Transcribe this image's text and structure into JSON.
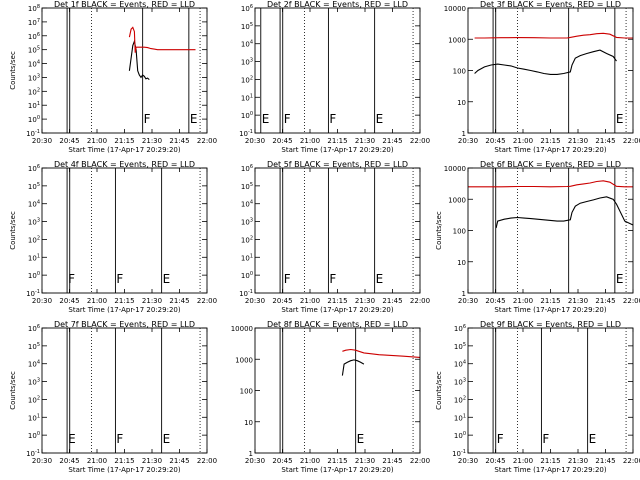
{
  "chart_data": [
    {
      "type": "line",
      "title": "Det 1f BLACK = Events, RED = LLD",
      "xlabel": "Start Time (17-Apr-17 20:29:20)",
      "ylabel": "Counts/sec",
      "xlim": [
        0,
        100
      ],
      "x_ticks": [
        "20:30",
        "20:45",
        "21:00",
        "21:15",
        "21:30",
        "21:45",
        "22:00"
      ],
      "y_scale": "log",
      "ylim": [
        0.1,
        100000000
      ],
      "y_ticks": [
        "10^-1",
        "10^0",
        "10^1",
        "10^2",
        "10^3",
        "10^4",
        "10^5",
        "10^6",
        "10^7",
        "10^8"
      ],
      "vlines": [
        {
          "x": 15.2,
          "style": "solid",
          "label": ""
        },
        {
          "x": 16.8,
          "style": "solid",
          "label": ""
        },
        {
          "x": 61.0,
          "style": "solid",
          "label": "F"
        },
        {
          "x": 89.0,
          "style": "solid",
          "label": "E"
        },
        {
          "x": 30.0,
          "style": "dotted",
          "label": ""
        },
        {
          "x": 95.8,
          "style": "dotted",
          "label": ""
        }
      ],
      "series": [
        {
          "name": "Events",
          "color": "#000000",
          "x": [
            53,
            55,
            56,
            57,
            58,
            59,
            60,
            61,
            62,
            63,
            64,
            65
          ],
          "y": [
            3000,
            200000,
            400000,
            100000,
            3000,
            1500,
            1000,
            1500,
            1200,
            800,
            900,
            700
          ]
        },
        {
          "name": "LLD",
          "color": "#cc0000",
          "x": [
            53,
            54,
            55,
            56,
            56.5,
            57,
            58,
            59,
            60,
            62,
            64,
            66,
            68,
            70,
            80,
            90,
            93
          ],
          "y": [
            800000,
            3000000,
            4000000,
            2000000,
            60000,
            150000,
            150000,
            150000,
            150000,
            150000,
            140000,
            120000,
            110000,
            100000,
            100000,
            100000,
            100000
          ]
        }
      ]
    },
    {
      "type": "line",
      "title": "Det 2f BLACK = Events, RED = LLD",
      "xlabel": "Start Time (17-Apr-17 20:29:20)",
      "ylabel": "",
      "xlim": [
        0,
        100
      ],
      "x_ticks": [
        "20:30",
        "20:45",
        "21:00",
        "21:15",
        "21:30",
        "21:45",
        "22:00"
      ],
      "y_scale": "log",
      "ylim": [
        0.1,
        1000000
      ],
      "y_ticks": [
        "10^-1",
        "10^0",
        "10^1",
        "10^2",
        "10^3",
        "10^4",
        "10^5",
        "10^6"
      ],
      "vlines": [
        {
          "x": 15.2,
          "style": "solid",
          "label": ""
        },
        {
          "x": 16.8,
          "style": "solid",
          "label": "F"
        },
        {
          "x": 44.5,
          "style": "solid",
          "label": "F"
        },
        {
          "x": 72.5,
          "style": "solid",
          "label": "E"
        },
        {
          "x": 3.5,
          "style": "solid",
          "label": "E"
        },
        {
          "x": 30.0,
          "style": "dotted",
          "label": ""
        },
        {
          "x": 95.8,
          "style": "dotted",
          "label": ""
        }
      ],
      "series": []
    },
    {
      "type": "line",
      "title": "Det 3f BLACK = Events, RED = LLD",
      "xlabel": "Start Time (17-Apr-17 20:29:20)",
      "ylabel": "",
      "xlim": [
        0,
        100
      ],
      "x_ticks": [
        "20:30",
        "20:45",
        "21:00",
        "21:15",
        "21:30",
        "21:45",
        "22:00"
      ],
      "y_scale": "log",
      "ylim": [
        1,
        10000
      ],
      "y_ticks": [
        "1",
        "10",
        "100",
        "1000",
        "10000"
      ],
      "vlines": [
        {
          "x": 15.2,
          "style": "solid",
          "label": ""
        },
        {
          "x": 16.8,
          "style": "solid",
          "label": ""
        },
        {
          "x": 61.0,
          "style": "solid",
          "label": ""
        },
        {
          "x": 89.0,
          "style": "solid",
          "label": "E"
        },
        {
          "x": 30.0,
          "style": "dotted",
          "label": ""
        },
        {
          "x": 95.8,
          "style": "dotted",
          "label": ""
        }
      ],
      "series": [
        {
          "name": "Events",
          "color": "#000000",
          "x": [
            4,
            6,
            10,
            14,
            18,
            22,
            26,
            30,
            34,
            38,
            42,
            46,
            50,
            54,
            58,
            62,
            63,
            65,
            68,
            72,
            76,
            80,
            84,
            88,
            90
          ],
          "y": [
            80,
            100,
            130,
            150,
            160,
            150,
            140,
            120,
            110,
            100,
            90,
            80,
            75,
            75,
            80,
            90,
            150,
            250,
            300,
            350,
            400,
            450,
            350,
            280,
            200
          ]
        },
        {
          "name": "LLD",
          "color": "#cc0000",
          "x": [
            4,
            10,
            20,
            30,
            40,
            50,
            60,
            62,
            66,
            70,
            74,
            78,
            82,
            86,
            90,
            95,
            100
          ],
          "y": [
            1100,
            1100,
            1120,
            1130,
            1120,
            1100,
            1100,
            1150,
            1250,
            1350,
            1400,
            1500,
            1550,
            1450,
            1150,
            1100,
            1100
          ]
        }
      ]
    },
    {
      "type": "line",
      "title": "Det 4f BLACK = Events, RED = LLD",
      "xlabel": "Start Time (17-Apr-17 20:29:20)",
      "ylabel": "Counts/sec",
      "xlim": [
        0,
        100
      ],
      "x_ticks": [
        "20:30",
        "20:45",
        "21:00",
        "21:15",
        "21:30",
        "21:45",
        "22:00"
      ],
      "y_scale": "log",
      "ylim": [
        0.1,
        1000000
      ],
      "y_ticks": [
        "10^-1",
        "10^0",
        "10^1",
        "10^2",
        "10^3",
        "10^4",
        "10^5",
        "10^6"
      ],
      "vlines": [
        {
          "x": 15.2,
          "style": "solid",
          "label": "F"
        },
        {
          "x": 16.8,
          "style": "solid",
          "label": ""
        },
        {
          "x": 44.5,
          "style": "solid",
          "label": "F"
        },
        {
          "x": 72.5,
          "style": "solid",
          "label": "E"
        },
        {
          "x": 30.0,
          "style": "dotted",
          "label": ""
        },
        {
          "x": 95.8,
          "style": "dotted",
          "label": ""
        }
      ],
      "series": []
    },
    {
      "type": "line",
      "title": "Det 5f BLACK = Events, RED = LLD",
      "xlabel": "Start Time (17-Apr-17 20:29:20)",
      "ylabel": "",
      "xlim": [
        0,
        100
      ],
      "x_ticks": [
        "20:30",
        "20:45",
        "21:00",
        "21:15",
        "21:30",
        "21:45",
        "22:00"
      ],
      "y_scale": "log",
      "ylim": [
        0.1,
        1000000
      ],
      "y_ticks": [
        "10^-1",
        "10^0",
        "10^1",
        "10^2",
        "10^3",
        "10^4",
        "10^5",
        "10^6"
      ],
      "vlines": [
        {
          "x": 15.2,
          "style": "solid",
          "label": ""
        },
        {
          "x": 16.8,
          "style": "solid",
          "label": "F"
        },
        {
          "x": 44.5,
          "style": "solid",
          "label": "F"
        },
        {
          "x": 72.5,
          "style": "solid",
          "label": "E"
        },
        {
          "x": 30.0,
          "style": "dotted",
          "label": ""
        },
        {
          "x": 95.8,
          "style": "dotted",
          "label": ""
        }
      ],
      "series": []
    },
    {
      "type": "line",
      "title": "Det 6f BLACK = Events, RED = LLD",
      "xlabel": "Start Time (17-Apr-17 20:29:20)",
      "ylabel": "Counts/sec",
      "xlim": [
        0,
        100
      ],
      "x_ticks": [
        "20:30",
        "20:45",
        "21:00",
        "21:15",
        "21:30",
        "21:45",
        "22:00"
      ],
      "y_scale": "log",
      "ylim": [
        1,
        10000
      ],
      "y_ticks": [
        "1",
        "10",
        "100",
        "1000",
        "10000"
      ],
      "vlines": [
        {
          "x": 15.2,
          "style": "solid",
          "label": ""
        },
        {
          "x": 16.8,
          "style": "solid",
          "label": ""
        },
        {
          "x": 61.0,
          "style": "solid",
          "label": ""
        },
        {
          "x": 89.0,
          "style": "solid",
          "label": "E"
        },
        {
          "x": 30.0,
          "style": "dotted",
          "label": ""
        },
        {
          "x": 95.8,
          "style": "dotted",
          "label": ""
        }
      ],
      "series": [
        {
          "name": "Events",
          "color": "#000000",
          "x": [
            17,
            18,
            22,
            26,
            30,
            34,
            38,
            42,
            46,
            50,
            54,
            58,
            62,
            63,
            65,
            68,
            72,
            76,
            80,
            84,
            88,
            90,
            95,
            100
          ],
          "y": [
            120,
            200,
            230,
            250,
            260,
            250,
            240,
            230,
            220,
            210,
            200,
            200,
            220,
            380,
            600,
            750,
            850,
            950,
            1100,
            1200,
            1000,
            700,
            200,
            150
          ]
        },
        {
          "name": "LLD",
          "color": "#cc0000",
          "x": [
            0,
            10,
            20,
            30,
            40,
            50,
            60,
            62,
            66,
            70,
            74,
            78,
            82,
            86,
            90,
            95,
            100
          ],
          "y": [
            2500,
            2500,
            2500,
            2550,
            2550,
            2500,
            2550,
            2600,
            2900,
            3100,
            3300,
            3700,
            3900,
            3500,
            2600,
            2500,
            2500
          ]
        }
      ]
    },
    {
      "type": "line",
      "title": "Det 7f BLACK = Events, RED = LLD",
      "xlabel": "Start Time (17-Apr-17 20:29:20)",
      "ylabel": "Counts/sec",
      "xlim": [
        0,
        100
      ],
      "x_ticks": [
        "20:30",
        "20:45",
        "21:00",
        "21:15",
        "21:30",
        "21:45",
        "22:00"
      ],
      "y_scale": "log",
      "ylim": [
        0.1,
        1000000
      ],
      "y_ticks": [
        "10^-1",
        "10^0",
        "10^1",
        "10^2",
        "10^3",
        "10^4",
        "10^5",
        "10^6"
      ],
      "vlines": [
        {
          "x": 15.2,
          "style": "solid",
          "label": "E"
        },
        {
          "x": 16.8,
          "style": "solid",
          "label": ""
        },
        {
          "x": 44.5,
          "style": "solid",
          "label": "F"
        },
        {
          "x": 72.5,
          "style": "solid",
          "label": "E"
        },
        {
          "x": 30.0,
          "style": "dotted",
          "label": ""
        },
        {
          "x": 95.8,
          "style": "dotted",
          "label": ""
        }
      ],
      "series": []
    },
    {
      "type": "line",
      "title": "Det 8f BLACK = Events, RED = LLD",
      "xlabel": "Start Time (17-Apr-17 20:29:20)",
      "ylabel": "",
      "xlim": [
        0,
        100
      ],
      "x_ticks": [
        "20:30",
        "20:45",
        "21:00",
        "21:15",
        "21:30",
        "21:45",
        "22:00"
      ],
      "y_scale": "log",
      "ylim": [
        1,
        10000
      ],
      "y_ticks": [
        "1",
        "10",
        "100",
        "1000",
        "10000"
      ],
      "vlines": [
        {
          "x": 15.2,
          "style": "solid",
          "label": ""
        },
        {
          "x": 16.8,
          "style": "solid",
          "label": ""
        },
        {
          "x": 61.0,
          "style": "solid",
          "label": "E"
        },
        {
          "x": 30.0,
          "style": "dotted",
          "label": ""
        },
        {
          "x": 95.8,
          "style": "dotted",
          "label": ""
        }
      ],
      "series": [
        {
          "name": "Events",
          "color": "#000000",
          "x": [
            53,
            54,
            56,
            58,
            60,
            62,
            64,
            66
          ],
          "y": [
            300,
            700,
            800,
            900,
            950,
            900,
            800,
            700
          ]
        },
        {
          "name": "LLD",
          "color": "#cc0000",
          "x": [
            53,
            55,
            58,
            61,
            63,
            66,
            70,
            75,
            80,
            85,
            90,
            95,
            100
          ],
          "y": [
            1800,
            1950,
            2050,
            1950,
            1800,
            1600,
            1500,
            1400,
            1350,
            1300,
            1250,
            1200,
            1150
          ]
        }
      ]
    },
    {
      "type": "line",
      "title": "Det 9f BLACK = Events, RED = LLD",
      "xlabel": "Start Time (17-Apr-17 20:29:20)",
      "ylabel": "Counts/sec",
      "xlim": [
        0,
        100
      ],
      "x_ticks": [
        "20:30",
        "20:45",
        "21:00",
        "21:15",
        "21:30",
        "21:45",
        "22:00"
      ],
      "y_scale": "log",
      "ylim": [
        0.1,
        1000000
      ],
      "y_ticks": [
        "10^-1",
        "10^0",
        "10^1",
        "10^2",
        "10^3",
        "10^4",
        "10^5",
        "10^6"
      ],
      "vlines": [
        {
          "x": 15.2,
          "style": "solid",
          "label": ""
        },
        {
          "x": 16.8,
          "style": "solid",
          "label": "F"
        },
        {
          "x": 44.5,
          "style": "solid",
          "label": "F"
        },
        {
          "x": 72.5,
          "style": "solid",
          "label": "E"
        },
        {
          "x": 30.0,
          "style": "dotted",
          "label": ""
        },
        {
          "x": 95.8,
          "style": "dotted",
          "label": ""
        }
      ],
      "series": []
    }
  ]
}
